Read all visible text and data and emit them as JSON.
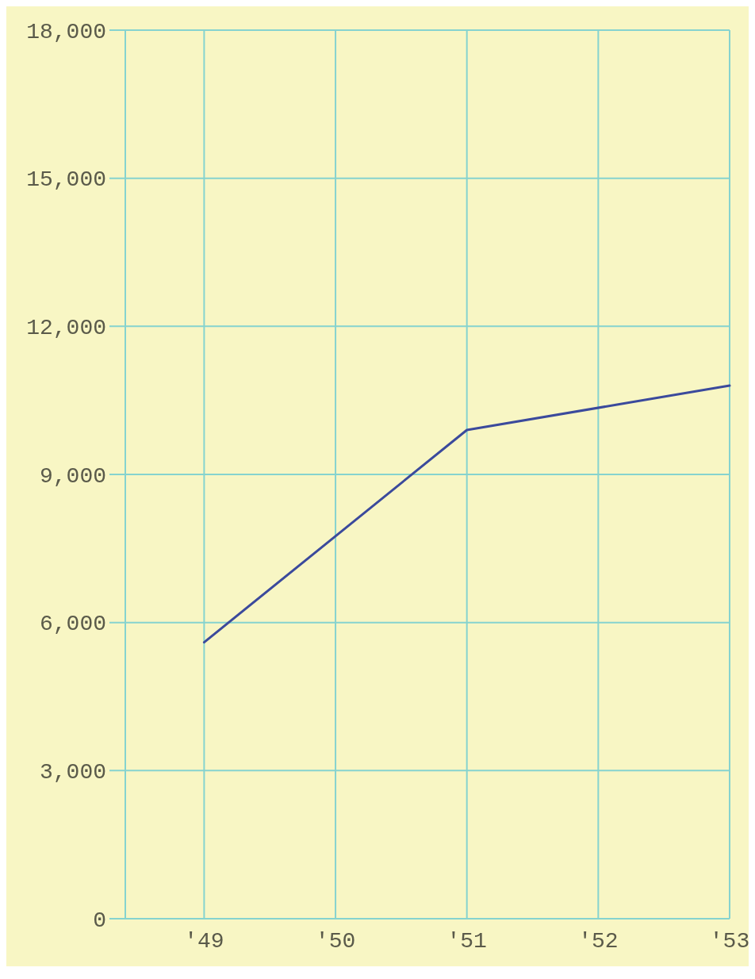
{
  "chart_data": {
    "type": "line",
    "x": [
      1949,
      1951,
      1953
    ],
    "series": [
      {
        "color": "#3b4a9c",
        "values": [
          5600,
          9900,
          10800
        ]
      }
    ],
    "xlim": [
      1948.4,
      1953
    ],
    "xticks": [
      {
        "value": 1949,
        "label": "'49"
      },
      {
        "value": 1950,
        "label": "'50"
      },
      {
        "value": 1951,
        "label": "'51"
      },
      {
        "value": 1952,
        "label": "'52"
      },
      {
        "value": 1953,
        "label": "'53"
      }
    ],
    "ylim": [
      0,
      18000
    ],
    "yticks": [
      {
        "value": 0,
        "label": "0"
      },
      {
        "value": 3000,
        "label": "3,000"
      },
      {
        "value": 6000,
        "label": "6,000"
      },
      {
        "value": 9000,
        "label": "9,000"
      },
      {
        "value": 12000,
        "label": "12,000"
      },
      {
        "value": 15000,
        "label": "15,000"
      },
      {
        "value": 18000,
        "label": "18,000"
      }
    ],
    "grid": true,
    "marker": "none",
    "line_style": "solid"
  }
}
